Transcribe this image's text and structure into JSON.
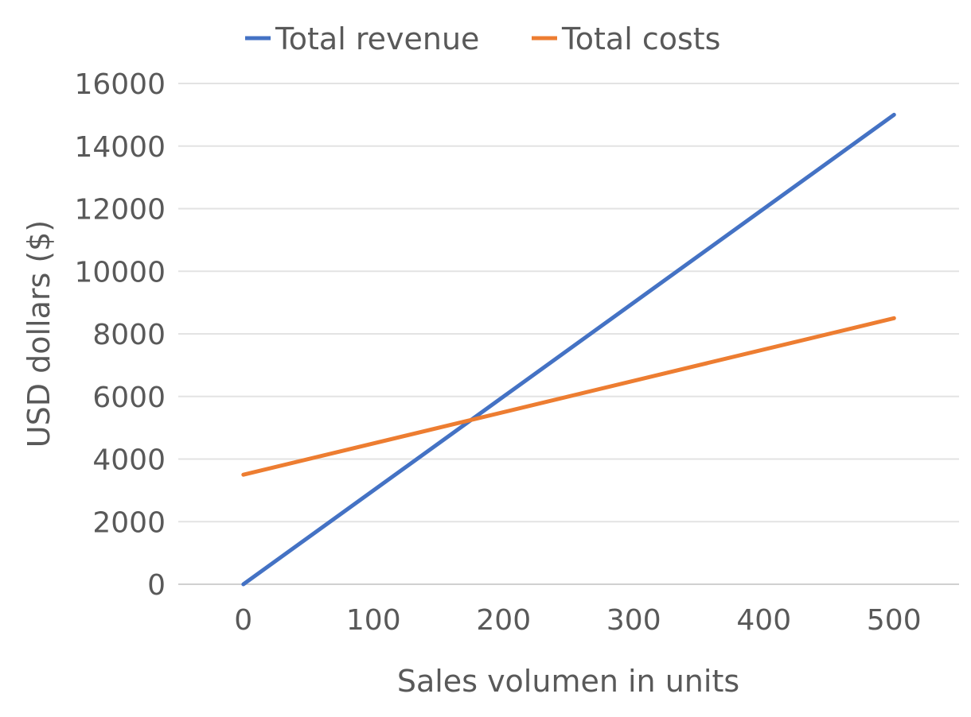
{
  "chart_data": {
    "type": "line",
    "title": "",
    "xlabel": "Sales volumen in units",
    "ylabel": "USD dollars ($)",
    "x": [
      0,
      500
    ],
    "xticks": [
      "0",
      "100",
      "200",
      "300",
      "400",
      "500"
    ],
    "xlim": [
      -50,
      550
    ],
    "yticks": [
      "0",
      "2000",
      "4000",
      "6000",
      "8000",
      "10000",
      "12000",
      "14000",
      "16000"
    ],
    "ylim": [
      0,
      16000
    ],
    "grid": true,
    "legend_position": "top",
    "series": [
      {
        "name": "Total revenue",
        "color": "#4472C4",
        "values": [
          0,
          15000
        ]
      },
      {
        "name": "Total costs",
        "color": "#ED7D31",
        "values": [
          3500,
          8500
        ]
      }
    ]
  }
}
